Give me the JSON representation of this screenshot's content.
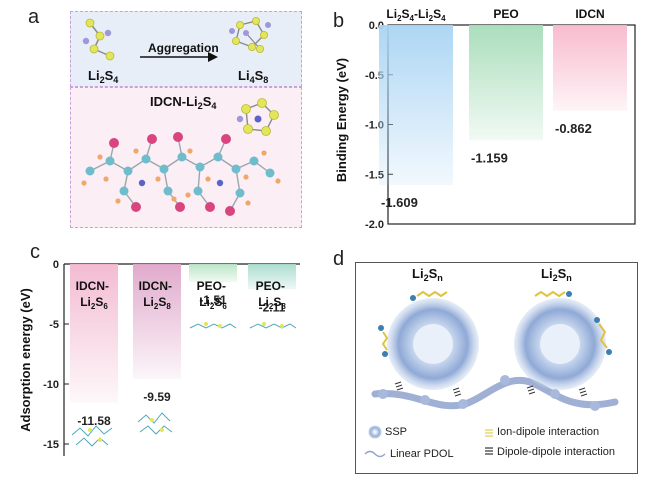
{
  "panels": {
    "a": {
      "label": "a",
      "aggregation_label": "Aggregation",
      "left_species": {
        "base": "Li",
        "s1": "2",
        "mid": "S",
        "s2": "4"
      },
      "right_species": {
        "base": "Li",
        "s1": "4",
        "mid": "S",
        "s2": "8"
      },
      "complex_label": {
        "base": "IDCN-Li",
        "s1": "2",
        "mid": "S",
        "s2": "4"
      },
      "colors": {
        "li": "#9f97d9",
        "s": "#e3e65a",
        "c": "#6fbccd",
        "o": "#d8457f",
        "h": "#f0a86a",
        "n": "#5a64c8"
      }
    },
    "b": {
      "label": "b"
    },
    "c": {
      "label": "c"
    },
    "d": {
      "label": "d",
      "particle_label_left": {
        "base": "Li",
        "s1": "2",
        "mid": "S",
        "s2": "n"
      },
      "particle_label_right": {
        "base": "Li",
        "s1": "2",
        "mid": "S",
        "s2": "n"
      },
      "legend": {
        "ssp": "SSP",
        "linear": "Linear PDOL",
        "ion_dipole": "Ion-dipole interaction",
        "dipole_dipole": "Dipole-dipole interaction"
      },
      "colors": {
        "sphere_outer": "#b9cbe8",
        "sphere_core": "#d6e3f4",
        "chain": "#8fa3cc",
        "ion_dipole": "#e0d24a"
      }
    }
  },
  "chart_data": [
    {
      "type": "bar",
      "panel": "b",
      "categories": [
        {
          "base": "Li",
          "s1": "2",
          "mid": "S",
          "s2": "4",
          "dash": "-Li",
          "s3": "2",
          "mid2": "S",
          "s4": "4"
        },
        {
          "base": "PEO"
        },
        {
          "base": "IDCN"
        }
      ],
      "values": [
        -1.609,
        -1.159,
        -0.862
      ],
      "data_labels": [
        "-1.609",
        "-1.159",
        "-0.862"
      ],
      "ylabel": "Binding Energy (eV)",
      "ylim": [
        -2.0,
        0.0
      ],
      "yticks": [
        "0.0",
        "-0.5",
        "-1.0",
        "-1.5",
        "-2.0"
      ],
      "ytick_values": [
        0.0,
        -0.5,
        -1.0,
        -1.5,
        -2.0
      ],
      "colors": [
        "#a9d4f3",
        "#a6dcb8",
        "#f8b8cc"
      ]
    },
    {
      "type": "bar",
      "panel": "c",
      "categories": [
        {
          "line1": "IDCN-",
          "base": "Li",
          "s1": "2",
          "mid": "S",
          "s2": "6"
        },
        {
          "line1": "IDCN-",
          "base": "Li",
          "s1": "2",
          "mid": "S",
          "s2": "8"
        },
        {
          "line1": "PEO-",
          "base": "Li",
          "s1": "2",
          "mid": "S",
          "s2": "6"
        },
        {
          "line1": "PEO-",
          "base": "Li",
          "s1": "2",
          "mid": "S",
          "s2": "8"
        }
      ],
      "values": [
        -11.58,
        -9.59,
        -1.51,
        -2.11
      ],
      "data_labels": [
        "-11.58",
        "-9.59",
        "-1.51",
        "-2.11"
      ],
      "ylabel": "Adsorption energy (eV)",
      "ylim": [
        -16,
        0
      ],
      "yticks": [
        "0",
        "-5",
        "-10",
        "-15"
      ],
      "ytick_values": [
        0,
        -5,
        -10,
        -15
      ],
      "colors": [
        "#f2b8cf",
        "#dfa6c9",
        "#b9e4c6",
        "#a9dccd"
      ]
    }
  ]
}
